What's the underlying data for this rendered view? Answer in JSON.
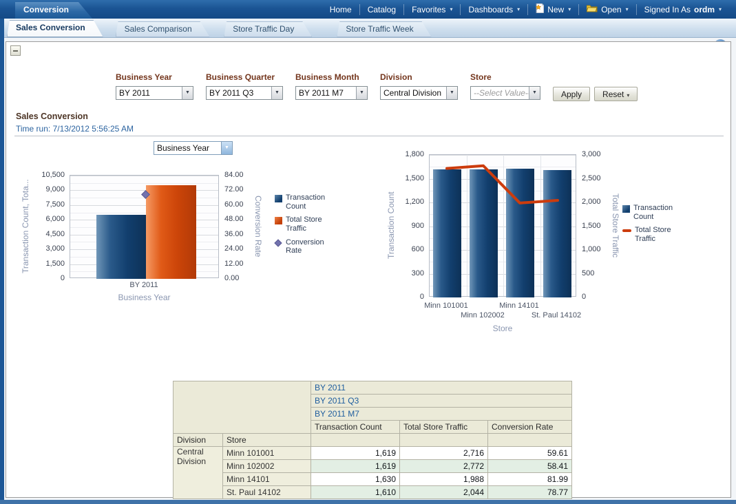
{
  "app": {
    "dashboard_title": "Conversion"
  },
  "top_nav": [
    {
      "label": "Home"
    },
    {
      "label": "Catalog"
    },
    {
      "label": "Favorites",
      "chevron": true
    },
    {
      "label": "Dashboards",
      "chevron": true
    },
    {
      "label": "New",
      "icon": "new-document-icon",
      "chevron": true
    },
    {
      "label": "Open",
      "icon": "open-folder-icon",
      "chevron": true
    },
    {
      "label": "Signed In As",
      "bold_suffix": "ordm",
      "chevron": true
    }
  ],
  "tabs": {
    "items": [
      "Sales Conversion",
      "Sales Comparison",
      "Store Traffic Day",
      "Store Traffic Week"
    ],
    "active": "Sales Conversion"
  },
  "toolbar_icons": [
    "page-options-icon",
    "help-icon"
  ],
  "filters": {
    "prompts": [
      {
        "label": "Business Year",
        "value": "BY 2011"
      },
      {
        "label": "Business Quarter",
        "value": "BY 2011 Q3"
      },
      {
        "label": "Business Month",
        "value": "BY 2011 M7"
      },
      {
        "label": "Division",
        "value": "Central Division"
      },
      {
        "label": "Store",
        "value": "--Select Value--",
        "placeholder": true
      }
    ],
    "apply_label": "Apply",
    "reset_label": "Reset"
  },
  "section": {
    "title": "Sales Conversion",
    "time_run": "Time run: 7/13/2012 5:56:25 AM"
  },
  "view_selector": {
    "value": "Business Year"
  },
  "chart_data": [
    {
      "type": "bar",
      "title": "",
      "categories": [
        "BY 2011"
      ],
      "series": [
        {
          "name": "Transaction Count",
          "kind": "bar",
          "axis": "left",
          "values": [
            6478
          ],
          "color": "#123f6e"
        },
        {
          "name": "Total Store Traffic",
          "kind": "bar",
          "axis": "left",
          "values": [
            9520
          ],
          "color": "#cc4509"
        },
        {
          "name": "Conversion Rate",
          "kind": "point",
          "axis": "right",
          "values": [
            68.05
          ],
          "color": "#7272ae"
        }
      ],
      "xlabel": "Business Year",
      "ylabel_left": "Transaction Count, Tota...",
      "ylabel_right": "Conversion Rate",
      "left_axis": {
        "min": 0,
        "max": 10500,
        "step": 1500,
        "decimals": 0
      },
      "right_axis": {
        "min": 0,
        "max": 84,
        "step": 12,
        "decimals": 2
      },
      "grid": true,
      "legend_position": "right"
    },
    {
      "type": "bar+line",
      "title": "",
      "categories": [
        "Minn 101001",
        "Minn 102002",
        "Minn 14101",
        "St. Paul 14102"
      ],
      "series": [
        {
          "name": "Transaction Count",
          "kind": "bar",
          "axis": "left",
          "values": [
            1619,
            1619,
            1630,
            1610
          ],
          "color": "#123f6e"
        },
        {
          "name": "Total Store Traffic",
          "kind": "line",
          "axis": "right",
          "values": [
            2716,
            2772,
            1988,
            2044
          ],
          "color": "#cc3c0d"
        }
      ],
      "xlabel": "Store",
      "ylabel_left": "Transaction Count",
      "ylabel_right": "Total Store Traffic",
      "left_axis": {
        "min": 0,
        "max": 1800,
        "step": 300,
        "decimals": 0
      },
      "right_axis": {
        "min": 0,
        "max": 3000,
        "step": 500,
        "decimals": 0
      },
      "grid": true,
      "legend_position": "right"
    }
  ],
  "pivot_table": {
    "filter_header_rows": [
      "BY 2011",
      "BY 2011 Q3",
      "BY 2011 M7"
    ],
    "measure_headers": [
      "Transaction Count",
      "Total Store Traffic",
      "Conversion Rate"
    ],
    "row_dim_headers": [
      "Division",
      "Store"
    ],
    "division": "Central Division",
    "rows": [
      {
        "store": "Minn 101001",
        "transaction_count": "1,619",
        "total_store_traffic": "2,716",
        "conversion_rate": "59.61"
      },
      {
        "store": "Minn 102002",
        "transaction_count": "1,619",
        "total_store_traffic": "2,772",
        "conversion_rate": "58.41"
      },
      {
        "store": "Minn 14101",
        "transaction_count": "1,630",
        "total_store_traffic": "1,988",
        "conversion_rate": "81.99"
      },
      {
        "store": "St. Paul 14102",
        "transaction_count": "1,610",
        "total_store_traffic": "2,044",
        "conversion_rate": "78.77"
      }
    ]
  },
  "colors": {
    "top_bar": "#1b5494",
    "bar_navy": "#123f6e",
    "bar_orange": "#cc4509",
    "line_red": "#cc3c0d",
    "marker_purple": "#7272ae",
    "table_header_beige": "#ebead8",
    "table_stripe_green": "#e3efe4",
    "link_blue": "#1e5d9e"
  }
}
